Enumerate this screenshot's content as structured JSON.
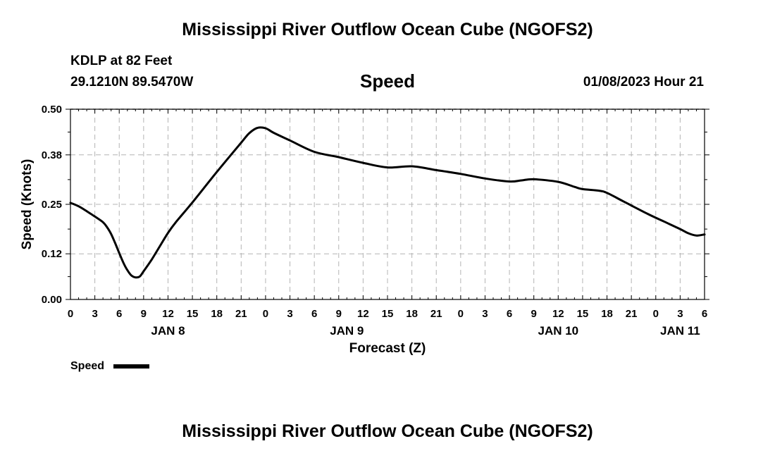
{
  "header": {
    "title": "Mississippi River Outflow Ocean Cube (NGOFS2)",
    "station": "KDLP at 82 Feet",
    "coordinates": "29.1210N  89.5470W",
    "datetime": "01/08/2023 Hour 21"
  },
  "footer": {
    "title": "Mississippi River Outflow Ocean Cube (NGOFS2)"
  },
  "colors": {
    "line": "#000000",
    "grid": "#b4b4b4",
    "background": "#ffffff"
  },
  "chart_data": {
    "type": "line",
    "title": "Speed",
    "xlabel": "Forecast (Z)",
    "ylabel": "Speed (Knots)",
    "xlim": [
      0,
      78
    ],
    "ylim": [
      0,
      0.5
    ],
    "yticks": [
      0.0,
      0.12,
      0.25,
      0.38,
      0.5
    ],
    "ytick_labels": [
      "0.00",
      "0.12",
      "0.25",
      "0.38",
      "0.50"
    ],
    "xticks": [
      0,
      3,
      6,
      9,
      12,
      15,
      18,
      21,
      24,
      27,
      30,
      33,
      36,
      39,
      42,
      45,
      48,
      51,
      54,
      57,
      60,
      63,
      66,
      69,
      72,
      75,
      78
    ],
    "xtick_labels": [
      "0",
      "3",
      "6",
      "9",
      "12",
      "15",
      "18",
      "21",
      "0",
      "3",
      "6",
      "9",
      "12",
      "15",
      "18",
      "21",
      "0",
      "3",
      "6",
      "9",
      "12",
      "15",
      "18",
      "21",
      "0",
      "3",
      "6"
    ],
    "date_labels": [
      {
        "x": 12,
        "label": "JAN 8"
      },
      {
        "x": 34,
        "label": "JAN 9"
      },
      {
        "x": 60,
        "label": "JAN 10"
      },
      {
        "x": 75,
        "label": "JAN 11"
      }
    ],
    "grid": true,
    "legend": {
      "position": "bottom-left",
      "label": "Speed"
    },
    "series": [
      {
        "name": "Speed",
        "x": [
          0,
          1,
          2,
          3,
          4,
          4.5,
          5,
          5.5,
          6,
          6.5,
          7,
          7.5,
          8,
          8.5,
          9,
          10,
          11,
          12,
          13,
          15,
          18,
          21,
          22,
          23,
          24,
          25,
          27,
          30,
          33,
          36,
          39,
          42,
          45,
          48,
          51,
          54,
          55.5,
          57,
          60,
          62,
          63,
          65,
          66,
          68,
          71,
          73,
          75,
          76,
          77,
          78
        ],
        "y": [
          0.254,
          0.245,
          0.232,
          0.218,
          0.203,
          0.19,
          0.172,
          0.148,
          0.122,
          0.097,
          0.077,
          0.063,
          0.058,
          0.06,
          0.074,
          0.105,
          0.14,
          0.175,
          0.204,
          0.255,
          0.335,
          0.412,
          0.437,
          0.451,
          0.45,
          0.438,
          0.418,
          0.388,
          0.374,
          0.359,
          0.347,
          0.35,
          0.34,
          0.33,
          0.318,
          0.31,
          0.313,
          0.316,
          0.309,
          0.296,
          0.29,
          0.286,
          0.28,
          0.258,
          0.225,
          0.205,
          0.185,
          0.174,
          0.168,
          0.171
        ]
      }
    ]
  }
}
